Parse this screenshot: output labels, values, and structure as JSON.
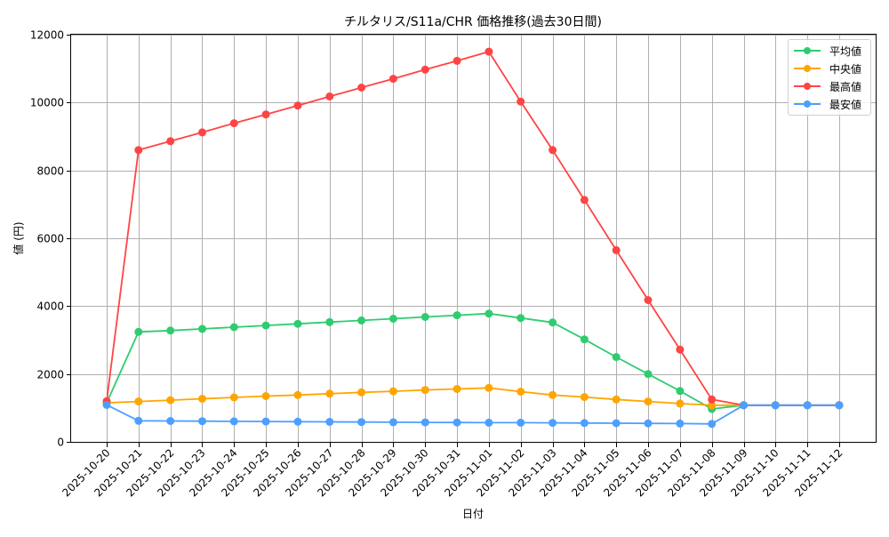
{
  "chart_data": {
    "type": "line",
    "title": "チルタリス/S11a/CHR 価格推移(過去30日間)",
    "xlabel": "日付",
    "ylabel": "値 (円)",
    "ylim": [
      0,
      12000
    ],
    "yticks": [
      0,
      2000,
      4000,
      6000,
      8000,
      10000,
      12000
    ],
    "grid": true,
    "legend_position": "upper right",
    "categories": [
      "2025-10-20",
      "2025-10-21",
      "2025-10-22",
      "2025-10-23",
      "2025-10-24",
      "2025-10-25",
      "2025-10-26",
      "2025-10-27",
      "2025-10-28",
      "2025-10-29",
      "2025-10-30",
      "2025-10-31",
      "2025-11-01",
      "2025-11-02",
      "2025-11-03",
      "2025-11-04",
      "2025-11-05",
      "2025-11-06",
      "2025-11-07",
      "2025-11-08",
      "2025-11-09",
      "2025-11-10",
      "2025-11-11",
      "2025-11-12"
    ],
    "series": [
      {
        "name": "平均値",
        "color": "#2ecc71",
        "values": [
          1150,
          3240,
          3280,
          3330,
          3380,
          3430,
          3480,
          3530,
          3580,
          3630,
          3680,
          3730,
          3780,
          3650,
          3520,
          3020,
          2500,
          2000,
          1500,
          970,
          1080,
          1080,
          1080,
          1080
        ]
      },
      {
        "name": "中央値",
        "color": "#ffa500",
        "values": [
          1150,
          1190,
          1230,
          1270,
          1310,
          1350,
          1380,
          1420,
          1460,
          1490,
          1530,
          1560,
          1590,
          1480,
          1380,
          1320,
          1250,
          1190,
          1130,
          1080,
          1080,
          1080,
          1080,
          1080
        ]
      },
      {
        "name": "最高値",
        "color": "#ff4444",
        "values": [
          1200,
          8600,
          8860,
          9120,
          9390,
          9650,
          9910,
          10180,
          10440,
          10700,
          10970,
          11230,
          11500,
          10030,
          8600,
          7130,
          5650,
          4180,
          2720,
          1250,
          1080,
          1080,
          1080,
          1080
        ]
      },
      {
        "name": "最安値",
        "color": "#4d9fff",
        "values": [
          1090,
          620,
          615,
          610,
          605,
          600,
          595,
          590,
          585,
          580,
          575,
          570,
          565,
          565,
          560,
          555,
          550,
          545,
          540,
          530,
          1080,
          1080,
          1080,
          1080
        ]
      }
    ]
  }
}
